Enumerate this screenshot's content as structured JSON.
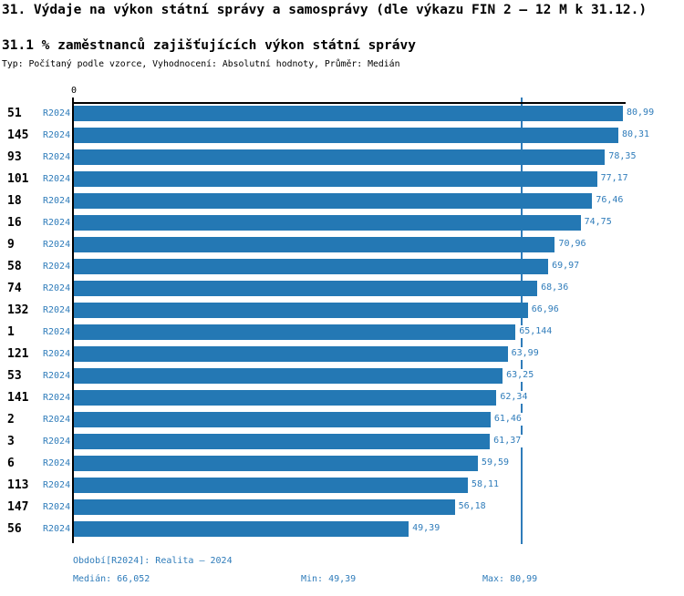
{
  "header": {
    "title": "31. Výdaje na výkon státní správy a samosprávy (dle výkazu FIN 2 – 12 M k 31.12.)",
    "subtitle": "31.1 % zaměstnanců zajišťujících výkon státní správy",
    "meta": "Typ: Počítaný podle vzorce, Vyhodnocení: Absolutní hodnoty, Průměr: Medián"
  },
  "chart_data": {
    "type": "bar",
    "orientation": "horizontal",
    "title": "31.1 % zaměstnanců zajišťujících výkon státní správy",
    "categories": [
      "51",
      "145",
      "93",
      "101",
      "18",
      "16",
      "9",
      "58",
      "74",
      "132",
      "1",
      "121",
      "53",
      "141",
      "2",
      "3",
      "6",
      "113",
      "147",
      "56"
    ],
    "series": [
      {
        "name": "R2024",
        "values": [
          80.99,
          80.31,
          78.35,
          77.17,
          76.46,
          74.75,
          70.96,
          69.97,
          68.36,
          66.96,
          65.144,
          63.99,
          63.25,
          62.34,
          61.46,
          61.37,
          59.59,
          58.11,
          56.18,
          49.39
        ],
        "labels": [
          "80,99",
          "80,31",
          "78,35",
          "77,17",
          "76,46",
          "74,75",
          "70,96",
          "69,97",
          "68,36",
          "66,96",
          "65,144",
          "63,99",
          "63,25",
          "62,34",
          "61,46",
          "61,37",
          "59,59",
          "58,11",
          "56,18",
          "49,39"
        ]
      }
    ],
    "xlim": [
      0,
      80.99
    ],
    "axis_zero_label": "0",
    "median_line": {
      "value": 66.052
    },
    "grid": false,
    "legend_position": "none",
    "bar_color": "#2478b4",
    "accent_text_color": "#2f7cba",
    "axis_color": "#000000"
  },
  "footer": {
    "period_label": "Období[R2024]: Realita – 2024",
    "median_label": "Medián: 66,052",
    "min_label": "Min: 49,39",
    "max_label": "Max: 80,99"
  }
}
